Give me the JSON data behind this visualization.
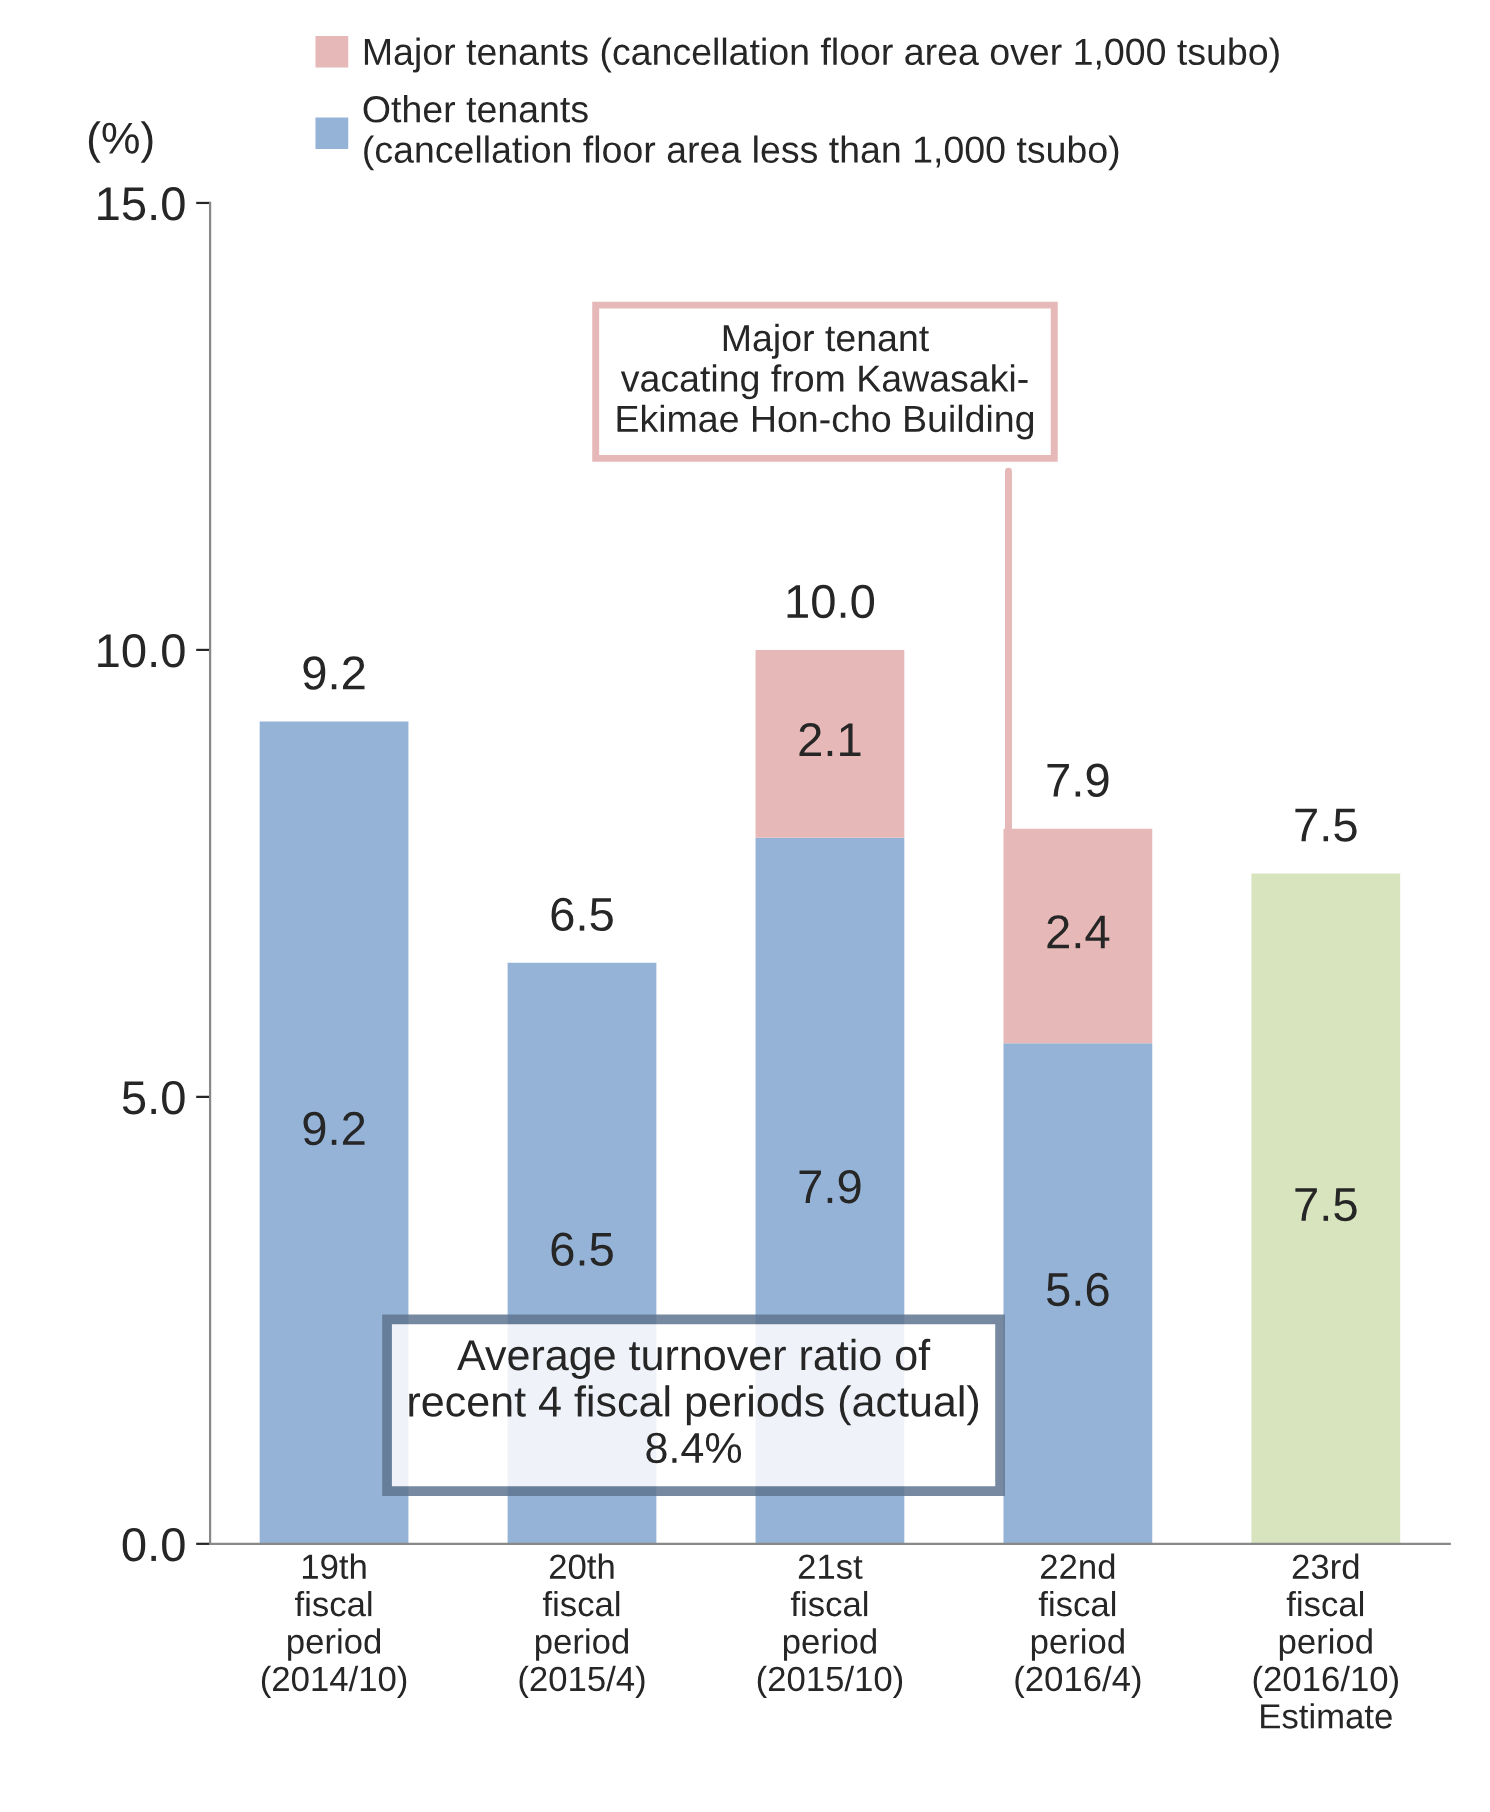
{
  "chart_data": {
    "type": "bar",
    "stacked": true,
    "ylabel": "(%)",
    "categories": [
      "19th\nfiscal\nperiod\n(2014/10)",
      "20th\nfiscal\nperiod\n(2015/4)",
      "21st\nfiscal\nperiod\n(2015/10)",
      "22nd\nfiscal\nperiod\n(2016/4)",
      "23rd\nfiscal\nperiod\n(2016/10)\nEstimate"
    ],
    "series": [
      {
        "name": "Other tenants\n(cancellation floor area less than 1,000 tsubo)",
        "color": "#95b3d7",
        "values": [
          9.2,
          6.5,
          7.9,
          5.6,
          null
        ]
      },
      {
        "name": "Major tenants (cancellation floor area over 1,000 tsubo)",
        "color": "#e6b9b8",
        "values": [
          null,
          null,
          2.1,
          2.4,
          null
        ]
      },
      {
        "color": "#d7e4bd",
        "values": [
          null,
          null,
          null,
          null,
          7.5
        ]
      }
    ],
    "data_labels": true,
    "totals": [
      "9.2",
      "6.5",
      "10.0",
      "7.9",
      "7.5"
    ],
    "ylim": [
      0,
      15
    ],
    "yticks": [
      {
        "value": 0,
        "label": "0.0"
      },
      {
        "value": 5,
        "label": "5.0"
      },
      {
        "value": 10,
        "label": "10.0"
      },
      {
        "value": 15,
        "label": "15.0"
      }
    ],
    "grid": false,
    "legend": "top",
    "annotations": [
      "Major tenant\nvacating from Kawasaki-\nEkimae Hon-cho Building",
      "Average turnover ratio of\nrecent 4 fiscal periods (actual)\n8.4%"
    ]
  }
}
